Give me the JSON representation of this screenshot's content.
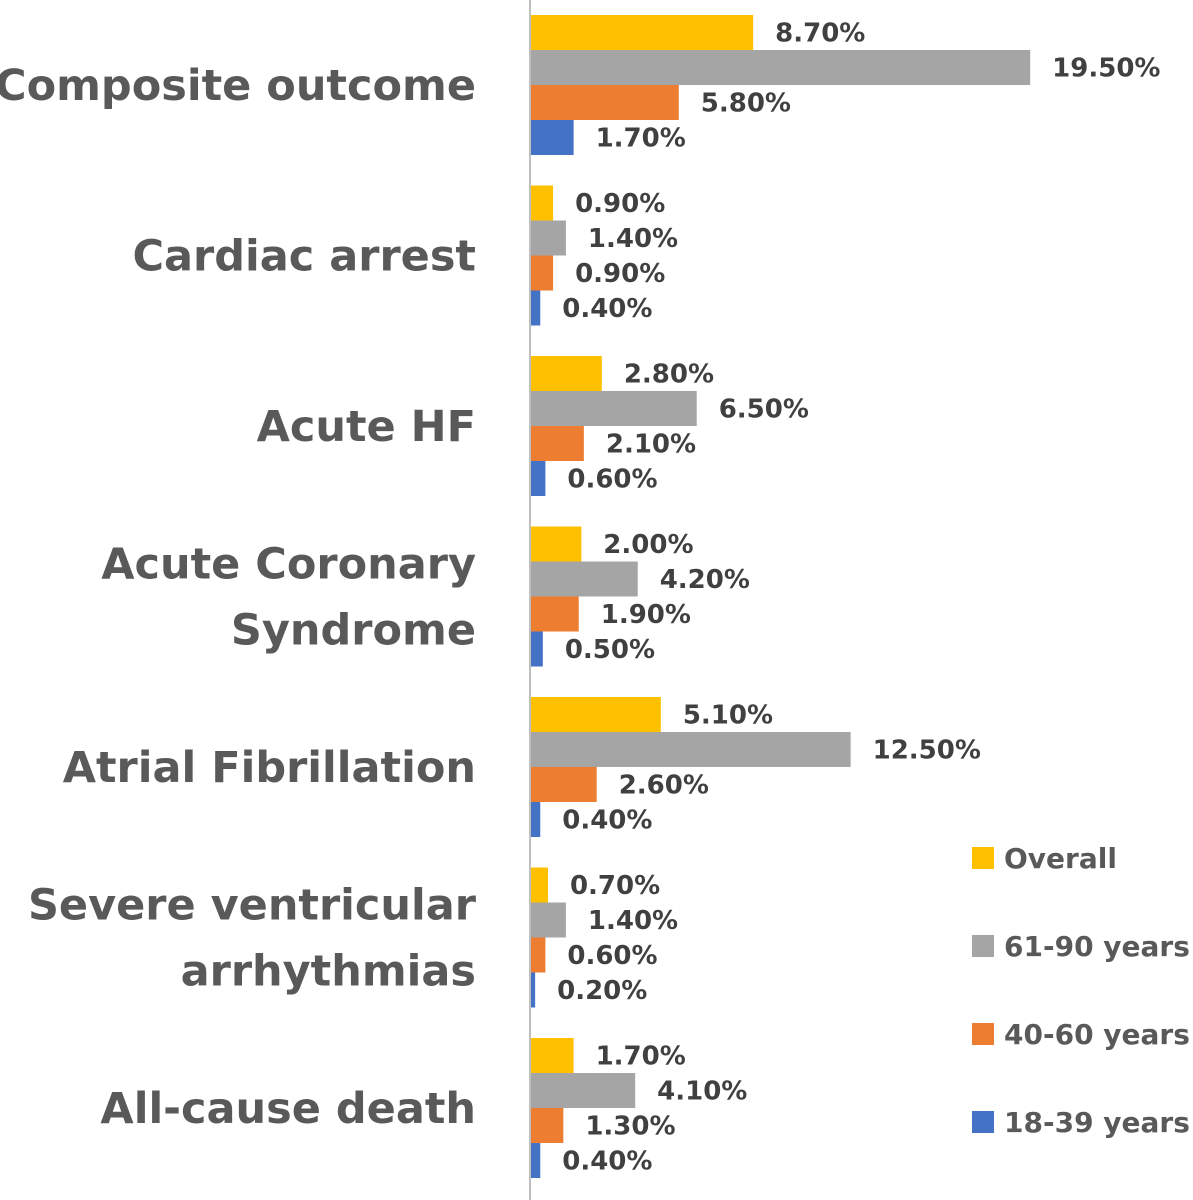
{
  "chart_data": {
    "type": "bar",
    "orientation": "horizontal",
    "title": "",
    "xlabel": "",
    "ylabel": "",
    "xlim": [
      0,
      20
    ],
    "grid": false,
    "legend_position": "bottom-right",
    "categories": [
      [
        "Composite outcome"
      ],
      [
        "Cardiac arrest"
      ],
      [
        "Acute HF"
      ],
      [
        "Acute Coronary",
        "Syndrome"
      ],
      [
        "Atrial Fibrillation"
      ],
      [
        "Severe ventricular",
        "arrhythmias"
      ],
      [
        "All-cause death"
      ]
    ],
    "series": [
      {
        "name": "Overall",
        "color": "#FFC000",
        "values": [
          8.7,
          0.9,
          2.8,
          2.0,
          5.1,
          0.7,
          1.7
        ],
        "labels": [
          "8.70%",
          "0.90%",
          "2.80%",
          "2.00%",
          "5.10%",
          "0.70%",
          "1.70%"
        ]
      },
      {
        "name": "61-90 years",
        "color": "#A5A5A5",
        "values": [
          19.5,
          1.4,
          6.5,
          4.2,
          12.5,
          1.4,
          4.1
        ],
        "labels": [
          "19.50%",
          "1.40%",
          "6.50%",
          "4.20%",
          "12.50%",
          "1.40%",
          "4.10%"
        ]
      },
      {
        "name": "40-60 years",
        "color": "#ED7D31",
        "values": [
          5.8,
          0.9,
          2.1,
          1.9,
          2.6,
          0.6,
          1.3
        ],
        "labels": [
          "5.80%",
          "0.90%",
          "2.10%",
          "1.90%",
          "2.60%",
          "0.60%",
          "1.30%"
        ]
      },
      {
        "name": "18-39 years",
        "color": "#4472C4",
        "values": [
          1.7,
          0.4,
          0.6,
          0.5,
          0.4,
          0.2,
          0.4
        ],
        "labels": [
          "1.70%",
          "0.40%",
          "0.60%",
          "0.50%",
          "0.40%",
          "0.20%",
          "0.40%"
        ]
      }
    ],
    "axis_color": "#BFBFBF"
  }
}
